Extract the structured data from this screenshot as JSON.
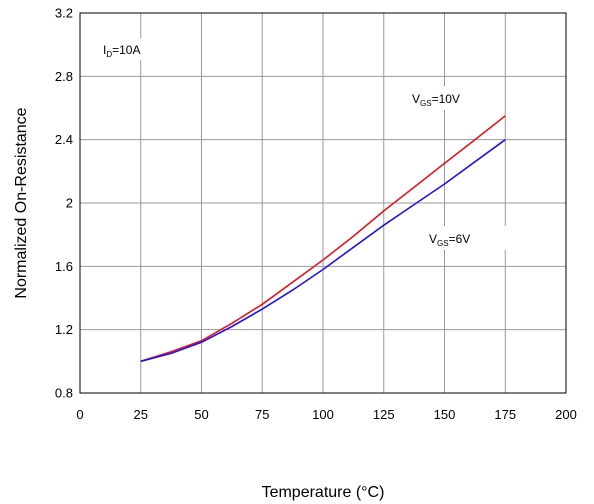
{
  "chart_data": {
    "type": "line",
    "title": "",
    "xlabel": "Temperature (°C)",
    "ylabel": "Normalized On-Resistance",
    "xlim": [
      0,
      200
    ],
    "ylim": [
      0.8,
      3.2
    ],
    "grid": true,
    "x_ticks": [
      "0",
      "25",
      "50",
      "75",
      "100",
      "125",
      "150",
      "175",
      "200"
    ],
    "y_ticks": [
      "0.8",
      "1.2",
      "1.6",
      "2",
      "2.4",
      "2.8",
      "3.2"
    ],
    "series": [
      {
        "name": "VGS=10V",
        "color": "#e8141c",
        "x": [
          25,
          37.5,
          50,
          62.5,
          75,
          87.5,
          100,
          112.5,
          125,
          137.5,
          150,
          162.5,
          175
        ],
        "y": [
          1.0,
          1.06,
          1.13,
          1.24,
          1.36,
          1.5,
          1.64,
          1.79,
          1.95,
          2.1,
          2.25,
          2.4,
          2.55
        ]
      },
      {
        "name": "VGS=6V",
        "color": "#1c14e8",
        "x": [
          25,
          37.5,
          50,
          62.5,
          75,
          87.5,
          100,
          112.5,
          125,
          137.5,
          150,
          162.5,
          175
        ],
        "y": [
          1.0,
          1.05,
          1.12,
          1.22,
          1.33,
          1.45,
          1.58,
          1.72,
          1.86,
          1.99,
          2.12,
          2.26,
          2.4
        ]
      }
    ],
    "annotations": {
      "id": {
        "main": "I",
        "sub": "D",
        "rest": "=10A"
      },
      "vgs10": {
        "main": "V",
        "sub": "GS",
        "rest": "=10V"
      },
      "vgs6": {
        "main": "V",
        "sub": "GS",
        "rest": "=6V"
      }
    }
  }
}
